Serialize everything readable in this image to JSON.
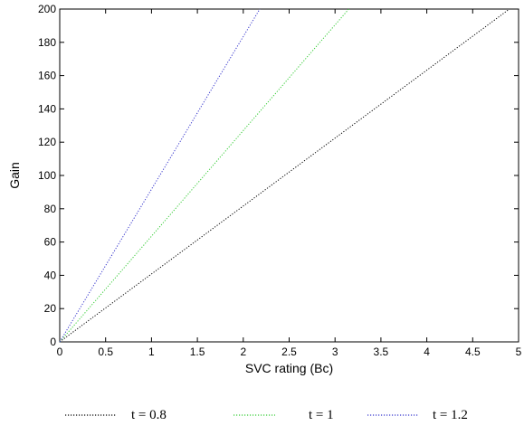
{
  "chart_data": {
    "type": "line",
    "xlabel": "SVC rating (Bc)",
    "ylabel": "Gain",
    "xlim": [
      0,
      5
    ],
    "ylim": [
      0,
      200
    ],
    "x_ticks": [
      "0",
      "0.5",
      "1",
      "1.5",
      "2",
      "2.5",
      "3",
      "3.5",
      "4",
      "4.5",
      "5"
    ],
    "y_ticks": [
      "0",
      "20",
      "40",
      "60",
      "80",
      "100",
      "120",
      "140",
      "160",
      "180",
      "200"
    ],
    "grid": false,
    "legend_position": "bottom",
    "series": [
      {
        "name": "t = 0.8",
        "color": "#000000",
        "x": [
          0,
          4.9
        ],
        "y": [
          0,
          200
        ]
      },
      {
        "name": "t = 1",
        "color": "#33cc33",
        "x": [
          0,
          3.15
        ],
        "y": [
          0,
          200
        ]
      },
      {
        "name": "t = 1.2",
        "color": "#3333cc",
        "x": [
          0,
          2.18
        ],
        "y": [
          0,
          200
        ]
      }
    ]
  }
}
